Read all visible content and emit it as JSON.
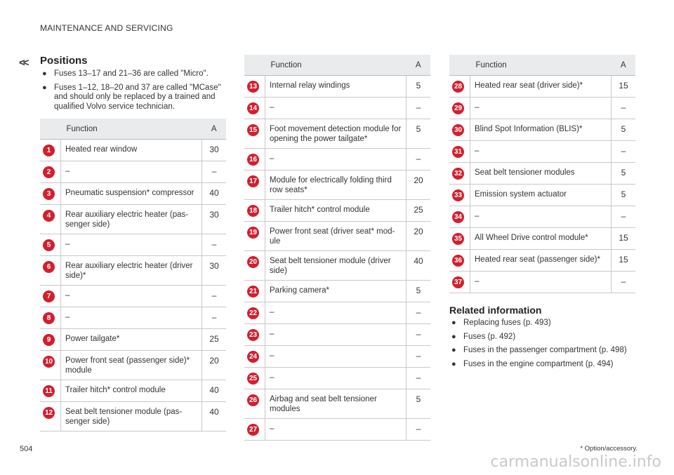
{
  "header": "MAINTENANCE AND SERVICING",
  "nav_chevrons": "<<",
  "positions": {
    "title": "Positions",
    "bullets": [
      "Fuses 13–17 and 21–36 are called \"Micro\".",
      "Fuses 1–12, 18–20  and 37 are called \"MCase\" and should only be replaced by a trained and qualified Volvo service technician."
    ]
  },
  "table_headers": {
    "function": "Function",
    "amp": "A"
  },
  "table1": [
    {
      "n": "1",
      "function": "Heated rear window",
      "amp": "30"
    },
    {
      "n": "2",
      "function": "–",
      "amp": "–"
    },
    {
      "n": "3",
      "function": "Pneumatic suspension* compressor",
      "amp": "40"
    },
    {
      "n": "4",
      "function": "Rear auxiliary electric heater (pas-senger side)",
      "amp": "30"
    },
    {
      "n": "5",
      "function": "–",
      "amp": "–"
    },
    {
      "n": "6",
      "function": "Rear auxiliary electric heater (driver side)*",
      "amp": "30"
    },
    {
      "n": "7",
      "function": "–",
      "amp": "–"
    },
    {
      "n": "8",
      "function": "–",
      "amp": "–"
    },
    {
      "n": "9",
      "function": "Power tailgate*",
      "amp": "25"
    },
    {
      "n": "10",
      "function": "Power front seat (passenger side)* module",
      "amp": "20"
    },
    {
      "n": "11",
      "function": "Trailer hitch* control module",
      "amp": "40"
    },
    {
      "n": "12",
      "function": "Seat belt tensioner module (pas-senger side)",
      "amp": "40"
    }
  ],
  "table2": [
    {
      "n": "13",
      "function": "Internal relay windings",
      "amp": "5"
    },
    {
      "n": "14",
      "function": "–",
      "amp": "–"
    },
    {
      "n": "15",
      "function": "Foot movement detection module for opening the power tailgate*",
      "amp": "5"
    },
    {
      "n": "16",
      "function": "–",
      "amp": "–"
    },
    {
      "n": "17",
      "function": "Module for electrically folding third row seats*",
      "amp": "20"
    },
    {
      "n": "18",
      "function": "Trailer hitch* control module",
      "amp": "25"
    },
    {
      "n": "19",
      "function": "Power front seat (driver seat* mod-ule",
      "amp": "20"
    },
    {
      "n": "20",
      "function": "Seat belt tensioner module (driver side)",
      "amp": "40"
    },
    {
      "n": "21",
      "function": "Parking camera*",
      "amp": "5"
    },
    {
      "n": "22",
      "function": "–",
      "amp": "–"
    },
    {
      "n": "23",
      "function": "–",
      "amp": "–"
    },
    {
      "n": "24",
      "function": "–",
      "amp": "–"
    },
    {
      "n": "25",
      "function": "–",
      "amp": "–"
    },
    {
      "n": "26",
      "function": "Airbag and seat belt tensioner modules",
      "amp": "5"
    },
    {
      "n": "27",
      "function": "–",
      "amp": "–"
    }
  ],
  "table3": [
    {
      "n": "28",
      "function": "Heated rear seat (driver side)*",
      "amp": "15"
    },
    {
      "n": "29",
      "function": "–",
      "amp": "–"
    },
    {
      "n": "30",
      "function": "Blind Spot Information (BLIS)*",
      "amp": "5"
    },
    {
      "n": "31",
      "function": "–",
      "amp": "–"
    },
    {
      "n": "32",
      "function": "Seat belt tensioner modules",
      "amp": "5"
    },
    {
      "n": "33",
      "function": "Emission system actuator",
      "amp": "5"
    },
    {
      "n": "34",
      "function": "–",
      "amp": "–"
    },
    {
      "n": "35",
      "function": "All Wheel Drive control module*",
      "amp": "15"
    },
    {
      "n": "36",
      "function": "Heated rear seat (passenger side)*",
      "amp": "15"
    },
    {
      "n": "37",
      "function": "–",
      "amp": "–"
    }
  ],
  "related": {
    "title": "Related information",
    "links": [
      "Replacing fuses (p. 493)",
      "Fuses (p. 492)",
      "Fuses in the passenger compartment (p. 498)",
      "Fuses in the engine compartment (p. 494)"
    ]
  },
  "footer_note": "* Option/accessory.",
  "page_number": "504",
  "watermark": "carmanualsonline.info",
  "colors": {
    "badge": "#d21f2e",
    "header_bg": "#e9ebec"
  }
}
